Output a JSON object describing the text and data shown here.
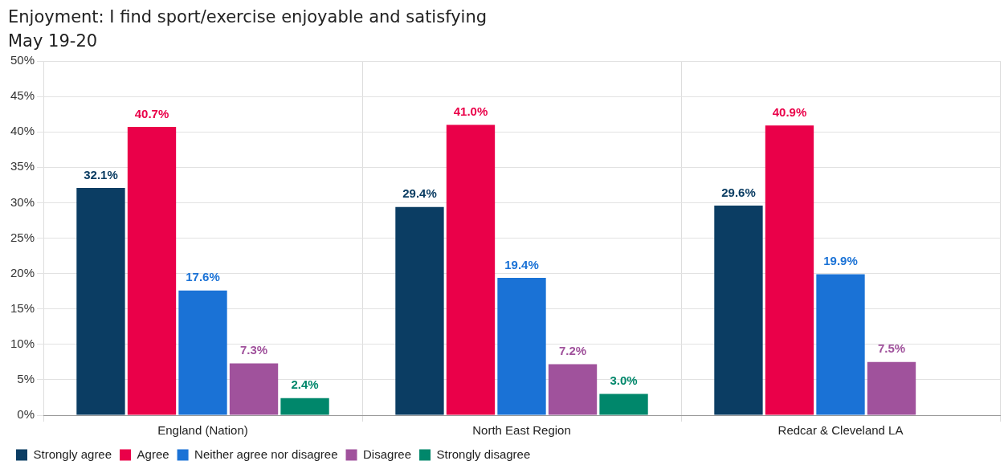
{
  "chart_data": {
    "type": "bar",
    "title": "Enjoyment: I find sport/exercise enjoyable and satisfying",
    "subtitle": "May 19-20",
    "categories": [
      "England (Nation)",
      "North East Region",
      "Redcar & Cleveland LA"
    ],
    "series": [
      {
        "name": "Strongly agree",
        "color": "#0b3d63",
        "values": [
          32.1,
          29.4,
          29.6
        ],
        "value_labels": [
          "32.1%",
          "29.4%",
          "29.6%"
        ]
      },
      {
        "name": "Agree",
        "color": "#ea0049",
        "values": [
          40.7,
          41.0,
          40.9
        ],
        "value_labels": [
          "40.7%",
          "41.0%",
          "40.9%"
        ]
      },
      {
        "name": "Neither agree nor disagree",
        "color": "#1a72d6",
        "values": [
          17.6,
          19.4,
          19.9
        ],
        "value_labels": [
          "17.6%",
          "19.4%",
          "19.9%"
        ]
      },
      {
        "name": "Disagree",
        "color": "#a0529c",
        "values": [
          7.3,
          7.2,
          7.5
        ],
        "value_labels": [
          "7.3%",
          "7.2%",
          "7.5%"
        ]
      },
      {
        "name": "Strongly disagree",
        "color": "#00876b",
        "values": [
          2.4,
          3.0,
          null
        ],
        "value_labels": [
          "2.4%",
          "3.0%",
          null
        ]
      }
    ],
    "ylim": [
      0,
      50
    ],
    "yticks": [
      {
        "value": 0,
        "label": "0%"
      },
      {
        "value": 5,
        "label": "5%"
      },
      {
        "value": 10,
        "label": "10%"
      },
      {
        "value": 15,
        "label": "15%"
      },
      {
        "value": 20,
        "label": "20%"
      },
      {
        "value": 25,
        "label": "25%"
      },
      {
        "value": 30,
        "label": "30%"
      },
      {
        "value": 35,
        "label": "35%"
      },
      {
        "value": 40,
        "label": "40%"
      },
      {
        "value": 45,
        "label": "45%"
      },
      {
        "value": 50,
        "label": "50%"
      }
    ],
    "grid": true,
    "legend": "bottom left"
  }
}
